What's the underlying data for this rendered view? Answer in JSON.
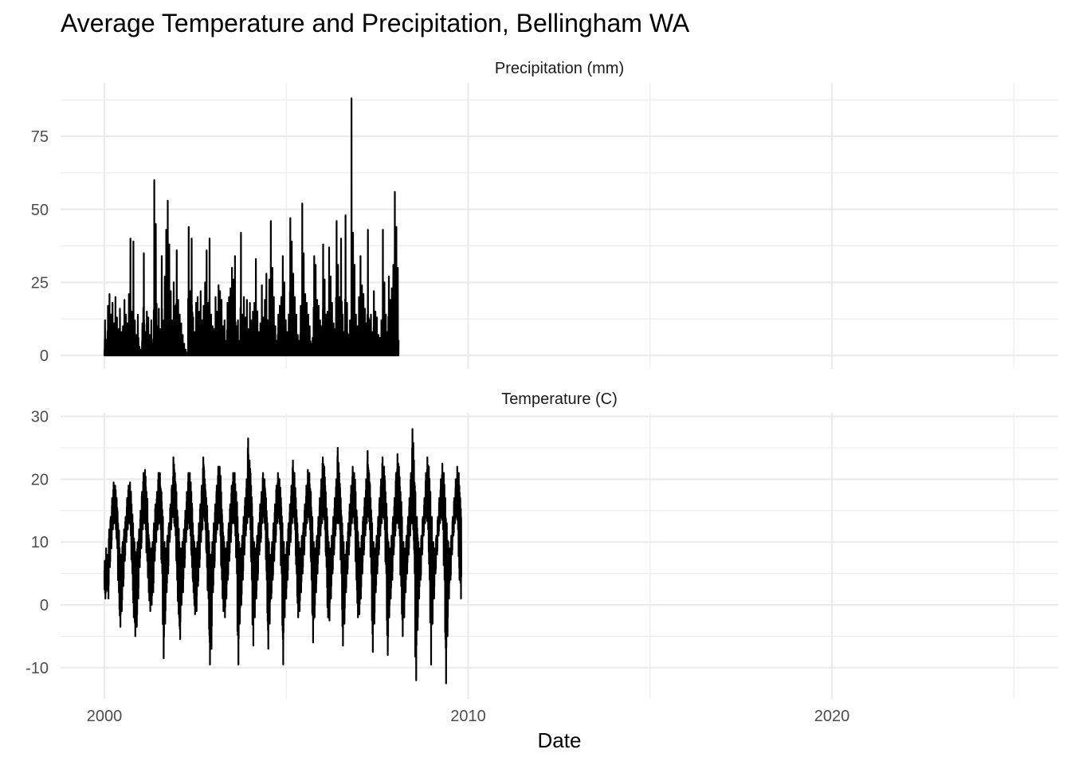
{
  "chart_data": {
    "type": "line",
    "title": "Average Temperature and Precipitation, Bellingham WA",
    "xlabel": "Date",
    "ylabel": "",
    "x_ticks": [
      "2000",
      "2010",
      "2020"
    ],
    "x_range": [
      "2000-01-01",
      "2024-12-31"
    ],
    "grid": true,
    "facets": [
      {
        "id": "precip",
        "strip_label": "Precipitation (mm)",
        "ylim": [
          0,
          92
        ],
        "y_ticks": [
          0,
          25,
          50,
          75
        ],
        "resolution": "daily, shown here as approximate semi-monthly peak values",
        "series": {
          "x_start": "2000-01-01",
          "step_days": 15,
          "values": [
            12,
            5,
            17,
            21,
            14,
            18,
            11,
            20,
            13,
            9,
            16,
            8,
            10,
            19,
            14,
            11,
            21,
            40,
            15,
            39,
            12,
            7,
            14,
            3,
            2,
            11,
            35,
            8,
            15,
            13,
            7,
            12,
            4,
            60,
            45,
            10,
            16,
            9,
            34,
            12,
            27,
            43,
            53,
            38,
            22,
            12,
            25,
            17,
            36,
            19,
            14,
            11,
            7,
            4,
            2,
            1,
            44,
            22,
            40,
            13,
            8,
            18,
            20,
            15,
            22,
            12,
            17,
            25,
            36,
            18,
            40,
            14,
            10,
            9,
            20,
            15,
            24,
            22,
            19,
            10,
            12,
            5,
            18,
            20,
            23,
            30,
            26,
            34,
            10,
            12,
            5,
            42,
            14,
            20,
            13,
            19,
            9,
            18,
            12,
            15,
            18,
            33,
            15,
            8,
            11,
            24,
            13,
            19,
            28,
            12,
            26,
            46,
            30,
            20,
            10,
            5,
            14,
            17,
            20,
            34,
            25,
            12,
            8,
            14,
            47,
            39,
            28,
            20,
            14,
            7,
            5,
            17,
            52,
            35,
            21,
            18,
            14,
            10,
            4,
            6,
            34,
            31,
            19,
            17,
            12,
            10,
            38,
            26,
            14,
            15,
            37,
            27,
            18,
            11,
            9,
            46,
            31,
            20,
            40,
            14,
            8,
            48,
            18,
            7,
            12,
            88,
            42,
            31,
            14,
            10,
            20,
            34,
            24,
            21,
            16,
            11,
            43,
            12,
            14,
            8,
            22,
            15,
            13,
            7,
            6,
            12,
            43,
            25,
            14,
            8,
            27,
            19,
            23,
            31,
            56,
            44,
            30
          ]
        }
      },
      {
        "id": "temp",
        "strip_label": "Temperature (C)",
        "ylim": [
          -13,
          30
        ],
        "y_ticks": [
          -10,
          0,
          10,
          20,
          30
        ],
        "resolution": "daily, shown here as approximate semi-monthly max/min envelope",
        "series": {
          "x_start": "2000-01-01",
          "step_days": 15,
          "max": [
            7.0,
            9.0,
            8.0,
            12.0,
            14.0,
            17.0,
            19.5,
            19.0,
            17.0,
            13.0,
            9.0,
            8.0,
            10.0,
            12.0,
            14.0,
            17.0,
            19.0,
            19.5,
            16.0,
            13.0,
            10.0,
            8.0,
            10.0,
            12.0,
            15.0,
            18.0,
            21.0,
            21.5,
            18.0,
            13.0,
            10.0,
            9.0,
            10.0,
            13.0,
            16.0,
            18.0,
            21.0,
            21.0,
            18.0,
            14.0,
            10.0,
            9.0,
            11.0,
            13.0,
            16.0,
            19.0,
            23.5,
            21.0,
            18.0,
            14.0,
            10.0,
            9.0,
            10.0,
            12.0,
            15.0,
            18.0,
            21.0,
            21.0,
            18.0,
            13.0,
            10.0,
            9.0,
            10.0,
            13.0,
            16.0,
            19.0,
            23.5,
            20.0,
            17.0,
            13.0,
            10.0,
            8.0,
            10.0,
            13.0,
            16.0,
            19.0,
            22.0,
            22.0,
            18.0,
            13.0,
            10.0,
            9.0,
            10.0,
            13.0,
            16.0,
            19.0,
            21.0,
            21.0,
            18.0,
            14.0,
            10.0,
            9.0,
            11.0,
            14.0,
            17.0,
            20.0,
            26.5,
            23.0,
            19.0,
            14.0,
            10.0,
            9.0,
            11.0,
            13.0,
            16.0,
            18.0,
            21.0,
            20.0,
            17.0,
            13.0,
            10.0,
            8.0,
            10.0,
            13.0,
            16.0,
            19.0,
            21.0,
            20.0,
            17.0,
            13.0,
            10.0,
            8.0,
            10.0,
            13.0,
            16.0,
            19.0,
            23.0,
            21.0,
            17.0,
            13.0,
            10.0,
            9.0,
            11.0,
            13.0,
            16.0,
            19.0,
            21.5,
            21.0,
            18.0,
            14.0,
            10.0,
            9.0,
            11.0,
            14.0,
            17.0,
            20.0,
            23.5,
            22.0,
            18.0,
            14.0,
            10.0,
            9.0,
            11.0,
            14.0,
            17.0,
            20.0,
            25.0,
            21.0,
            17.0,
            13.0,
            10.0,
            8.0,
            10.0,
            13.0,
            16.0,
            19.0,
            22.0,
            21.0,
            18.0,
            14.0,
            10.0,
            9.0,
            11.0,
            14.0,
            17.0,
            20.0,
            24.5,
            21.0,
            17.0,
            13.0,
            10.0,
            9.0,
            11.0,
            14.0,
            17.0,
            20.0,
            23.5,
            22.0,
            18.0,
            14.0,
            10.0,
            9.0,
            11.0,
            14.0,
            17.0,
            21.0,
            24.0,
            22.0,
            18.0,
            14.0,
            10.0,
            9.0,
            11.0,
            14.0,
            17.0,
            21.0,
            28.0,
            23.0,
            18.0,
            14.0,
            10.0,
            9.0,
            11.0,
            14.0,
            17.0,
            21.0,
            23.5,
            22.0,
            18.0,
            14.0,
            10.0,
            9.0,
            11.0,
            14.0,
            17.0,
            20.0,
            22.5,
            21.0,
            17.0,
            13.0,
            10.0,
            9.0,
            11.0,
            14.0,
            17.0,
            20.0,
            22.0,
            21.0,
            17.0,
            13.0,
            10.0
          ],
          "min": [
            1.0,
            3.0,
            1.0,
            6.0,
            9.0,
            12.0,
            13.0,
            12.0,
            9.0,
            2.0,
            -3.5,
            -1.0,
            3.0,
            7.0,
            10.0,
            12.0,
            13.0,
            11.0,
            5.0,
            -2.0,
            -5.0,
            -3.5,
            1.0,
            6.0,
            9.0,
            12.0,
            13.0,
            12.0,
            7.0,
            2.0,
            -1.0,
            0.0,
            2.0,
            7.0,
            10.0,
            12.0,
            13.0,
            12.0,
            5.0,
            -8.5,
            -3.0,
            2.0,
            5.0,
            10.0,
            12.0,
            14.0,
            13.0,
            11.0,
            4.0,
            -1.5,
            -5.5,
            0.0,
            2.0,
            6.0,
            10.0,
            12.0,
            13.0,
            11.0,
            6.0,
            2.0,
            -1.5,
            -1.0,
            3.0,
            6.0,
            10.0,
            12.0,
            14.0,
            12.0,
            6.0,
            1.0,
            -9.5,
            -7.0,
            2.0,
            6.0,
            10.0,
            12.0,
            13.0,
            11.0,
            4.0,
            -1.0,
            -2.0,
            1.0,
            4.0,
            7.0,
            10.0,
            13.0,
            13.0,
            11.0,
            5.0,
            -9.5,
            -3.0,
            0.0,
            4.0,
            8.0,
            11.0,
            13.0,
            14.0,
            12.0,
            4.0,
            -6.5,
            -2.0,
            1.0,
            4.0,
            8.0,
            10.0,
            13.0,
            14.0,
            12.0,
            4.0,
            -7.0,
            -3.0,
            1.0,
            4.0,
            7.0,
            10.0,
            13.0,
            14.0,
            12.0,
            5.0,
            -9.5,
            -2.0,
            1.0,
            4.0,
            8.0,
            10.0,
            13.0,
            14.0,
            12.0,
            5.0,
            -2.0,
            -1.0,
            2.0,
            5.0,
            8.0,
            11.0,
            13.0,
            14.0,
            12.0,
            4.0,
            -6.0,
            -2.0,
            2.0,
            5.0,
            8.0,
            11.0,
            13.0,
            14.0,
            12.0,
            6.0,
            -2.0,
            -2.5,
            1.0,
            5.0,
            8.0,
            11.0,
            13.0,
            13.0,
            12.0,
            5.0,
            -6.5,
            -3.0,
            2.0,
            5.0,
            8.0,
            11.0,
            13.0,
            14.0,
            12.0,
            4.0,
            -2.0,
            -1.5,
            1.0,
            5.0,
            8.0,
            11.0,
            13.0,
            14.0,
            12.0,
            5.0,
            -7.5,
            -3.0,
            2.0,
            5.0,
            8.0,
            11.0,
            13.0,
            14.0,
            12.0,
            5.0,
            -8.0,
            -2.0,
            1.0,
            4.0,
            8.0,
            11.0,
            13.0,
            13.0,
            11.0,
            3.0,
            -5.0,
            -2.0,
            2.0,
            5.0,
            8.0,
            11.0,
            13.0,
            12.0,
            5.0,
            -12.0,
            -4.0,
            1.0,
            4.0,
            8.0,
            11.0,
            13.0,
            14.0,
            12.0,
            4.0,
            -9.5,
            -3.0,
            1.0,
            5.0,
            8.0,
            11.0,
            13.0,
            14.0,
            12.0,
            4.0,
            -12.5,
            -5.0,
            1.0,
            4.0,
            8.0,
            11.0,
            13.0,
            14.0,
            12.0,
            4.0,
            1.0
          ]
        }
      }
    ]
  }
}
